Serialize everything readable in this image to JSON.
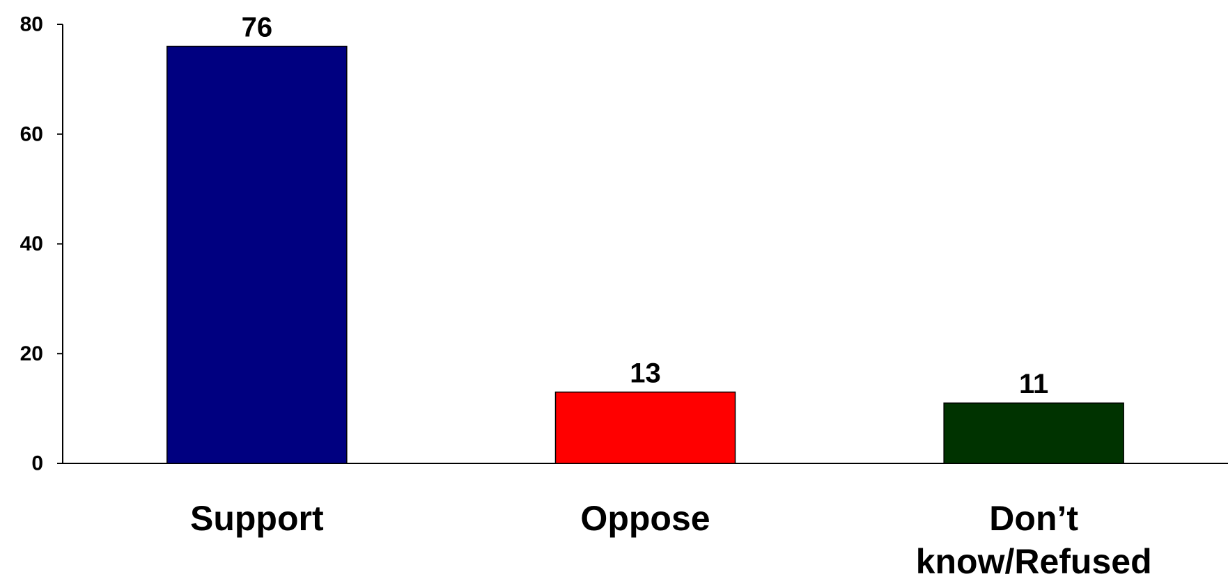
{
  "chart_data": {
    "type": "bar",
    "title": "",
    "xlabel": "",
    "ylabel": "",
    "categories": [
      "Support",
      "Oppose",
      "Don’t know/Refused"
    ],
    "category_label_lines": [
      [
        "Support"
      ],
      [
        "Oppose"
      ],
      [
        "Don’t",
        "know/Refused"
      ]
    ],
    "values": [
      76,
      13,
      11
    ],
    "data_labels": [
      "76",
      "13",
      "11"
    ],
    "bar_colors": [
      "#000080",
      "#ff0000",
      "#003300"
    ],
    "ylim": [
      0,
      80
    ],
    "yticks": [
      0,
      20,
      40,
      60,
      80
    ],
    "ytick_labels": [
      "0",
      "20",
      "40",
      "60",
      "80"
    ],
    "grid": false,
    "legend": "none"
  }
}
